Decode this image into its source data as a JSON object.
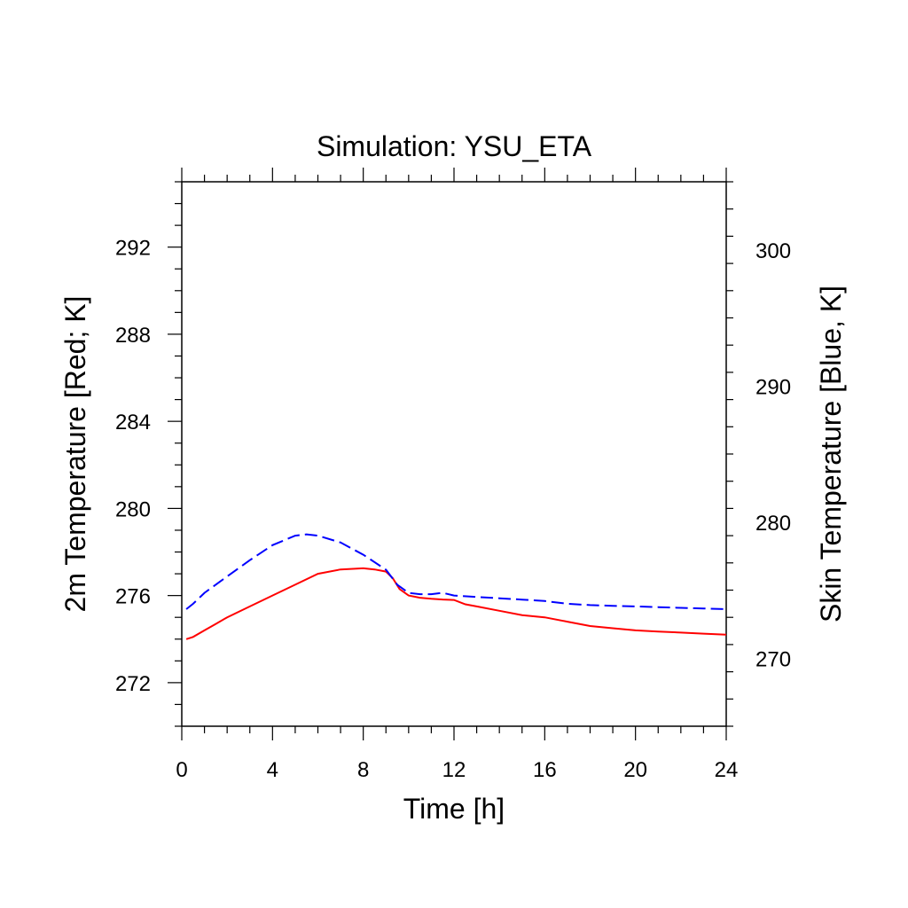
{
  "chart_data": {
    "type": "line",
    "title": "Simulation: YSU_ETA",
    "xlabel": "Time [h]",
    "ylabel_left": "2m Temperature [Red; K]",
    "ylabel_right": "Skin Temperature [Blue, K]",
    "xlim": [
      0,
      24
    ],
    "ylim_left": [
      270,
      295
    ],
    "ylim_right": [
      265,
      305
    ],
    "xticks": [
      0,
      4,
      8,
      12,
      16,
      20,
      24
    ],
    "yticks_left": [
      272,
      276,
      280,
      284,
      288,
      292
    ],
    "yticks_right": [
      270,
      280,
      290,
      300
    ],
    "grid": false,
    "series": [
      {
        "color": "#ff0000",
        "dash": "solid",
        "axis": "left",
        "x": [
          0.2,
          0.5,
          1,
          1.5,
          2,
          3,
          4,
          5,
          6,
          7,
          8,
          8.5,
          9,
          9.3,
          9.6,
          10,
          10.5,
          11,
          11.5,
          12,
          12.5,
          13,
          14,
          15,
          16,
          17,
          18,
          19,
          20,
          21,
          22,
          23,
          24
        ],
        "y": [
          274.0,
          274.1,
          274.4,
          274.7,
          275.0,
          275.5,
          276.0,
          276.5,
          277.0,
          277.2,
          277.25,
          277.2,
          277.1,
          276.8,
          276.3,
          276.0,
          275.9,
          275.85,
          275.82,
          275.8,
          275.6,
          275.5,
          275.3,
          275.1,
          275.0,
          274.8,
          274.6,
          274.5,
          274.4,
          274.35,
          274.3,
          274.25,
          274.2
        ]
      },
      {
        "color": "#0000ff",
        "dash": "dashed",
        "axis": "right",
        "x": [
          0.2,
          0.5,
          1,
          2,
          3,
          4,
          5,
          5.5,
          6,
          7,
          8,
          9,
          9.5,
          10,
          10.5,
          11,
          11.5,
          12,
          13,
          14,
          15,
          16,
          17,
          18,
          19,
          20,
          21,
          22,
          23,
          24
        ],
        "y": [
          273.6,
          274.0,
          274.8,
          276.0,
          277.2,
          278.3,
          279.0,
          279.1,
          279.0,
          278.5,
          277.6,
          276.5,
          275.4,
          274.8,
          274.7,
          274.7,
          274.8,
          274.6,
          274.5,
          274.4,
          274.3,
          274.2,
          274.0,
          273.9,
          273.85,
          273.8,
          273.75,
          273.7,
          273.65,
          273.6
        ]
      }
    ]
  }
}
